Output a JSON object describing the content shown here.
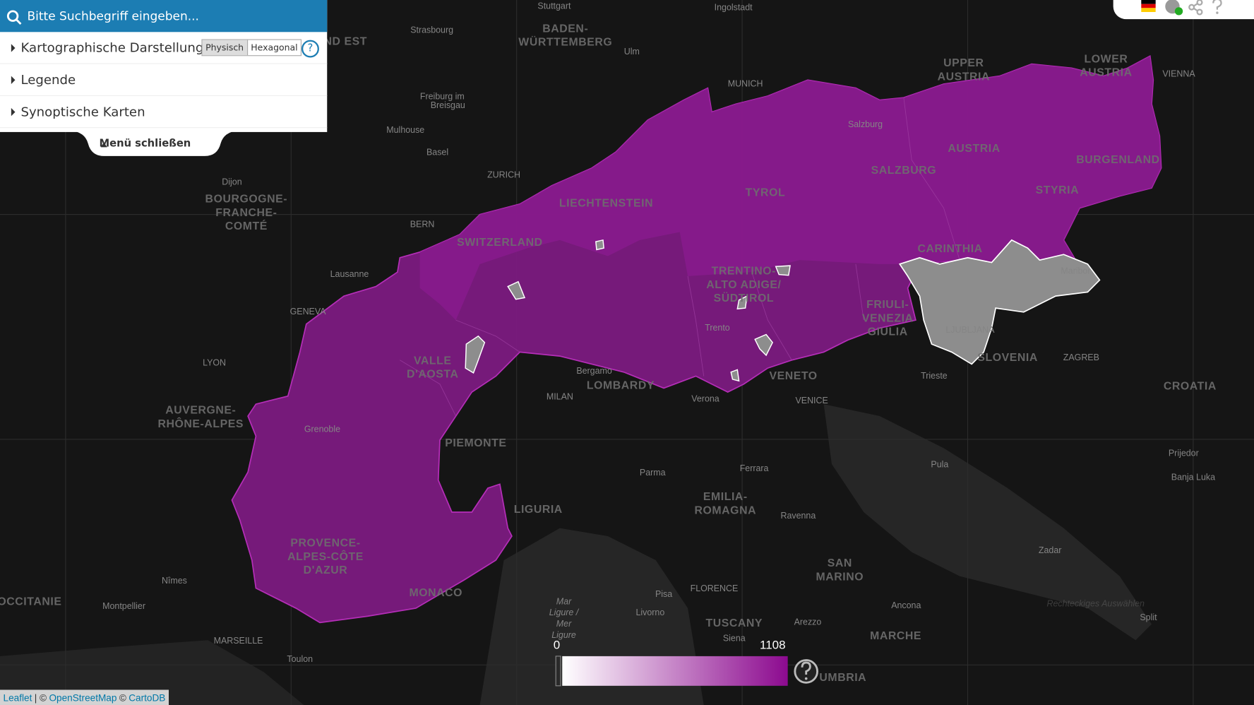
{
  "search": {
    "placeholder": "Bitte Suchbegriff eingeben..."
  },
  "menu": {
    "items": [
      "Kartographische Darstellung",
      "Legende",
      "Synoptische Karten"
    ],
    "toggle": [
      "Physisch",
      "Hexagonal"
    ],
    "close": "Menü schließen"
  },
  "legend": {
    "min": 0,
    "max": 1108
  },
  "attribution": {
    "leaflet": "Leaflet",
    "sep1": "| ©",
    "osm": "OpenStreetMap",
    "sep2": "©",
    "carto": "CartoDB"
  },
  "map_labels": [
    {
      "lines": [
        "BADEN-",
        "WÜRTTEMBERG"
      ]
    },
    {
      "lines": [
        "UPPER",
        "AUSTRIA"
      ]
    },
    {
      "lines": [
        "LOWER",
        "AUSTRIA"
      ]
    },
    {
      "lines": [
        "AUSTRIA"
      ]
    },
    {
      "lines": [
        "SALZBURG"
      ]
    },
    {
      "lines": [
        "BURGENLAND"
      ]
    },
    {
      "lines": [
        "STYRIA"
      ]
    },
    {
      "lines": [
        "TYROL"
      ]
    },
    {
      "lines": [
        "LIECHTENSTEIN"
      ]
    },
    {
      "lines": [
        "SWITZERLAND"
      ]
    },
    {
      "lines": [
        "CARINTHIA"
      ]
    },
    {
      "lines": [
        "TRENTINO-",
        "ALTO ADIGE/",
        "SÜDTIROL"
      ]
    },
    {
      "lines": [
        "FRIULI-",
        "VENEZIA",
        "GIULIA"
      ]
    },
    {
      "lines": [
        "SLOVENIA"
      ]
    },
    {
      "lines": [
        "CROATIA"
      ]
    },
    {
      "lines": [
        "VENETO"
      ]
    },
    {
      "lines": [
        "LOMBARDY"
      ]
    },
    {
      "lines": [
        "VALLE",
        "D'AOSTA"
      ]
    },
    {
      "lines": [
        "PIEMONTE"
      ]
    },
    {
      "lines": [
        "LIGURIA"
      ]
    },
    {
      "lines": [
        "EMILIA-",
        "ROMAGNA"
      ]
    },
    {
      "lines": [
        "SAN",
        "MARINO"
      ]
    },
    {
      "lines": [
        "TUSCANY"
      ]
    },
    {
      "lines": [
        "MARCHE"
      ]
    },
    {
      "lines": [
        "UMBRIA"
      ]
    },
    {
      "lines": [
        "PROVENCE-",
        "ALPES-CÔTE",
        "D'AZUR"
      ]
    },
    {
      "lines": [
        "MONACO"
      ]
    },
    {
      "lines": [
        "AUVERGNE-",
        "RHÔNE-ALPES"
      ]
    },
    {
      "lines": [
        "BOURGOGNE-",
        "FRANCHE-",
        "COMTÉ"
      ]
    },
    {
      "lines": [
        "OCCITANIE"
      ]
    },
    {
      "lines": [
        "ND EST"
      ]
    }
  ],
  "cities": [
    "Stuttgart",
    "Ingolstadt",
    "Strasbourg",
    "Ulm",
    "MUNICH",
    "VIENNA",
    "Freiburg im",
    "Breisgau",
    "Salzburg",
    "Mulhouse",
    "Basel",
    "ZURICH",
    "Dijon",
    "BERN",
    "Lausanne",
    "GENEVA",
    "LYON",
    "MILAN",
    "Bergamo",
    "Trento",
    "Verona",
    "VENICE",
    "Trieste",
    "Grenoble",
    "Ferrara",
    "Parma",
    "Ravenna",
    "Pula",
    "Prijedor",
    "Banja Luka",
    "Zadar",
    "Nîmes",
    "Montpellier",
    "MARSEILLE",
    "Toulon",
    "Pisa",
    "FLORENCE",
    "Livorno",
    "Siena",
    "Arezzo",
    "Ancona",
    "Split",
    "Maribor",
    "ZAGREB",
    "LJUBLJANA",
    "Mar",
    "Ligure /",
    "Mer",
    "Ligure",
    "Rechteckiges Auswählen"
  ]
}
